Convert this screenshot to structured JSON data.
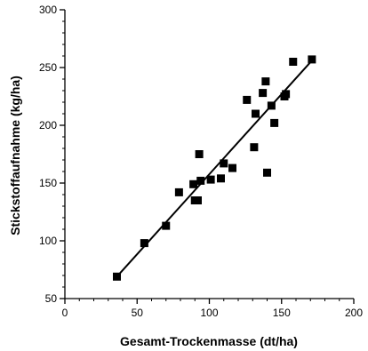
{
  "chart_data": {
    "type": "scatter",
    "title": "",
    "xlabel": "Gesamt-Trockenmasse (dt/ha)",
    "ylabel": "Stickstoffaufnahme (kg/ha)",
    "xlim": [
      0,
      200
    ],
    "ylim": [
      50,
      300
    ],
    "xticks": [
      0,
      50,
      100,
      150,
      200
    ],
    "yticks": [
      50,
      100,
      150,
      200,
      250,
      300
    ],
    "x_minor_step": 10,
    "y_minor_step": 10,
    "grid": false,
    "legend": "none",
    "marker": "square",
    "series": [
      {
        "points": [
          {
            "x": 36,
            "y": 69
          },
          {
            "x": 55,
            "y": 98
          },
          {
            "x": 70,
            "y": 113
          },
          {
            "x": 79,
            "y": 142
          },
          {
            "x": 89,
            "y": 149
          },
          {
            "x": 90,
            "y": 135
          },
          {
            "x": 92,
            "y": 135
          },
          {
            "x": 93,
            "y": 175
          },
          {
            "x": 94,
            "y": 152
          },
          {
            "x": 101,
            "y": 153
          },
          {
            "x": 108,
            "y": 154
          },
          {
            "x": 110,
            "y": 167
          },
          {
            "x": 116,
            "y": 163
          },
          {
            "x": 126,
            "y": 222
          },
          {
            "x": 131,
            "y": 181
          },
          {
            "x": 132,
            "y": 210
          },
          {
            "x": 137,
            "y": 228
          },
          {
            "x": 139,
            "y": 238
          },
          {
            "x": 140,
            "y": 159
          },
          {
            "x": 143,
            "y": 217
          },
          {
            "x": 145,
            "y": 202
          },
          {
            "x": 152,
            "y": 225
          },
          {
            "x": 153,
            "y": 227
          },
          {
            "x": 158,
            "y": 255
          },
          {
            "x": 171,
            "y": 257
          }
        ]
      }
    ],
    "fit_line": {
      "x": [
        36,
        171
      ],
      "y": [
        69,
        256
      ]
    },
    "colors": {
      "marker": "#000000",
      "line": "#000000",
      "axis": "#000000"
    }
  }
}
